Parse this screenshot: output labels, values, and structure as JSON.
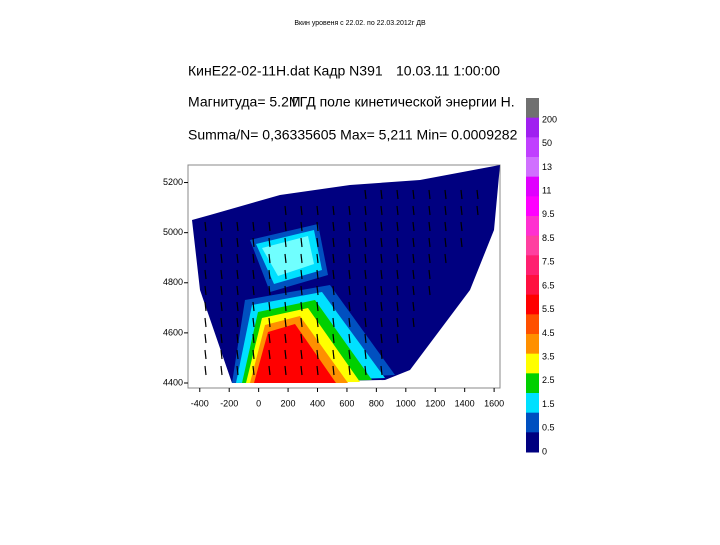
{
  "caption": "Вкин уровеня с 22.02. по 22.03.2012г ДВ",
  "chart_data": {
    "type": "contour",
    "header": [
      "КинЕ22-02-11Н.dat Кадр N391",
      "10.03.11 1:00:00",
      "Магнитуда= 5.2M",
      "ГГД поле кинетической энергии Н.",
      "Summa/N= 0,36335605 Max= 5,211 Min= 0.0009282"
    ],
    "xlim": [
      -480,
      1640
    ],
    "xticks": [
      -400,
      -200,
      0,
      200,
      400,
      600,
      800,
      1000,
      1200,
      1400,
      1600
    ],
    "ylim": [
      4380,
      5270
    ],
    "yticks": [
      5200,
      5000,
      4800,
      4600,
      4400
    ],
    "colorbar": {
      "ticks": [
        200,
        50,
        13,
        11,
        9.5,
        8.5,
        7.5,
        6.5,
        5.5,
        4.5,
        3.5,
        2.5,
        1.5,
        0.5,
        0
      ],
      "colors": [
        "#707070",
        "#a020f0",
        "#c040ff",
        "#d070ff",
        "#e000ff",
        "#ff00ff",
        "#ff30d0",
        "#ff40a0",
        "#ff2070",
        "#ff1040",
        "#ff0000",
        "#ff5000",
        "#ff9000",
        "#ffff00",
        "#00d000",
        "#00e0ff",
        "#0050c0",
        "#000080"
      ]
    }
  }
}
